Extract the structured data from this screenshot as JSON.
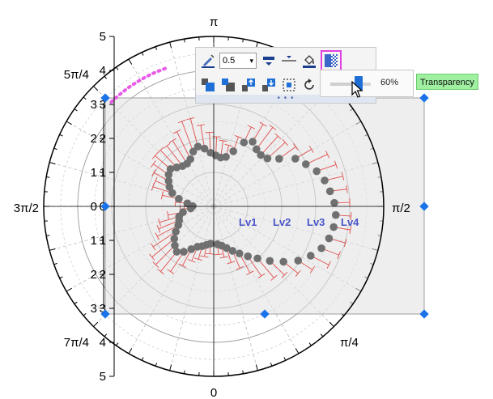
{
  "chart_data": {
    "type": "polar-scatter",
    "angle_axis": {
      "unit": "radians",
      "labels": [
        {
          "text": "0",
          "angle": 0
        },
        {
          "text": "π/4",
          "angle": 0.7854
        },
        {
          "text": "π/2",
          "angle": 1.5708
        },
        {
          "text": "π",
          "angle": 3.1416
        },
        {
          "text": "3π/2",
          "angle": 4.7124
        },
        {
          "text": "5π/4",
          "angle": 3.927
        },
        {
          "text": "7π/4",
          "angle": 5.4978
        }
      ]
    },
    "radial_axis": {
      "range": [
        0,
        5
      ],
      "outer_ticks": [
        "0",
        "1",
        "2",
        "3",
        "4",
        "5"
      ],
      "inner_ticks": [
        "0",
        "1",
        "2",
        "3"
      ]
    },
    "levels": [
      "Lv1",
      "Lv2",
      "Lv3",
      "Lv4"
    ],
    "grid": true,
    "colors": {
      "points": "#707070",
      "error_bars": "#e05050",
      "level_labels": "#4a55c8",
      "panel": "#e2e2e2",
      "handles": "#1a73e8",
      "selection_arc": "#e85be8"
    },
    "series": [
      {
        "theta": [
          1.6,
          1.7,
          1.8,
          1.9,
          2.0,
          2.1,
          2.2,
          2.3,
          2.4,
          2.5,
          2.6,
          2.7,
          2.8,
          2.9,
          3.0,
          3.1,
          3.2,
          3.3,
          3.4,
          3.5,
          3.6,
          3.7,
          3.8,
          3.9,
          4.0,
          4.1,
          4.2,
          4.3,
          4.4,
          4.5,
          4.6,
          4.7,
          4.8,
          4.9,
          5.0,
          5.1,
          5.2,
          5.3,
          5.4,
          5.5,
          5.6,
          5.7,
          5.8,
          5.9,
          6.0,
          6.1,
          6.2,
          0.1,
          0.2,
          0.3,
          0.4,
          0.5,
          0.6,
          0.7,
          0.8,
          0.9,
          1.0,
          1.1,
          1.2,
          1.3,
          1.4,
          1.5
        ],
        "r": [
          3.55,
          3.45,
          3.35,
          3.2,
          2.98,
          2.78,
          2.38,
          2.12,
          2.05,
          2.1,
          2.22,
          2.08,
          1.72,
          1.5,
          1.45,
          1.5,
          1.58,
          1.72,
          1.82,
          1.72,
          1.55,
          1.48,
          1.5,
          1.58,
          1.68,
          1.62,
          1.52,
          1.42,
          1.28,
          1.05,
          0.78,
          0.62,
          0.68,
          0.92,
          1.06,
          1.1,
          1.18,
          1.34,
          1.5,
          1.62,
          1.72,
          1.6,
          1.42,
          1.28,
          1.22,
          1.15,
          1.1,
          1.12,
          1.18,
          1.28,
          1.42,
          1.58,
          1.78,
          2.0,
          2.3,
          2.62,
          2.95,
          3.2,
          3.4,
          3.52,
          3.58,
          3.6
        ],
        "error": [
          0.45,
          0.5,
          0.55,
          0.6,
          0.7,
          0.55,
          0.6,
          0.7,
          0.75,
          0.8,
          0.6,
          0.5,
          0.45,
          0.35,
          0.5,
          0.55,
          0.6,
          0.7,
          0.85,
          0.95,
          0.9,
          0.8,
          0.75,
          0.7,
          0.6,
          0.55,
          0.5,
          0.45,
          0.6,
          0.5,
          0.35,
          0.25,
          0.3,
          0.45,
          0.6,
          0.65,
          0.7,
          0.8,
          0.85,
          0.8,
          0.75,
          0.7,
          0.55,
          0.45,
          0.4,
          0.35,
          0.3,
          0.3,
          0.35,
          0.45,
          0.55,
          0.65,
          0.7,
          0.75,
          0.6,
          0.55,
          0.5,
          0.6,
          0.55,
          0.5,
          0.5,
          0.45
        ]
      }
    ]
  },
  "toolbar": {
    "line_width": "0.5",
    "transparency_value": 60,
    "transparency_label": "60%",
    "tooltip": "Transparency",
    "dots": "• • •",
    "icons": [
      "line-color-icon",
      "line-width-dropdown",
      "line-style-icon",
      "connect-line-icon",
      "fill-color-icon",
      "transparency-icon",
      "move-to-front-icon",
      "move-to-back-icon",
      "move-forward-icon",
      "move-backward-icon",
      "select-frame-icon",
      "rotate-icon"
    ]
  }
}
